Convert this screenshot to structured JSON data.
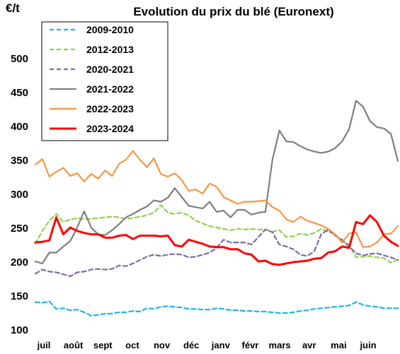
{
  "chart_data": {
    "type": "line",
    "title": "Evolution du prix du blé (Euronext)",
    "ylabel": "€/t",
    "xlabel": "",
    "ylim": [
      100,
      500
    ],
    "yticks": [
      100,
      150,
      200,
      250,
      300,
      350,
      400,
      450,
      500
    ],
    "x_tick_labels": [
      "juil",
      "août",
      "sept",
      "oct",
      "nov",
      "déc",
      "janv",
      "févr",
      "mars",
      "avr",
      "mai",
      "juin"
    ],
    "grid": false,
    "legend_position": "top-left",
    "x_range": [
      0,
      52
    ],
    "series": [
      {
        "name": "2009-2010",
        "color": "#1fb4e8",
        "dash": "dashed",
        "values": [
          [
            0,
            140
          ],
          [
            1,
            139
          ],
          [
            2,
            141
          ],
          [
            3,
            130
          ],
          [
            4,
            131
          ],
          [
            5,
            128
          ],
          [
            6,
            129
          ],
          [
            7,
            125
          ],
          [
            8,
            120
          ],
          [
            9,
            121
          ],
          [
            10,
            123
          ],
          [
            11,
            123
          ],
          [
            12,
            125
          ],
          [
            13,
            125
          ],
          [
            14,
            127
          ],
          [
            15,
            126
          ],
          [
            16,
            131
          ],
          [
            17,
            130
          ],
          [
            18,
            133
          ],
          [
            19,
            134
          ],
          [
            20,
            133
          ],
          [
            21,
            132
          ],
          [
            22,
            130
          ],
          [
            23,
            130
          ],
          [
            24,
            129
          ],
          [
            25,
            129
          ],
          [
            26,
            131
          ],
          [
            27,
            130
          ],
          [
            28,
            128
          ],
          [
            29,
            128
          ],
          [
            30,
            127
          ],
          [
            31,
            127
          ],
          [
            32,
            126
          ],
          [
            33,
            126
          ],
          [
            34,
            125
          ],
          [
            35,
            124
          ],
          [
            36,
            124
          ],
          [
            37,
            125
          ],
          [
            38,
            127
          ],
          [
            39,
            128
          ],
          [
            40,
            130
          ],
          [
            41,
            131
          ],
          [
            42,
            132
          ],
          [
            43,
            133
          ],
          [
            44,
            134
          ],
          [
            45,
            135
          ],
          [
            46,
            140
          ],
          [
            47,
            136
          ],
          [
            48,
            134
          ],
          [
            49,
            133
          ],
          [
            50,
            131
          ],
          [
            51,
            131
          ],
          [
            52,
            131
          ]
        ]
      },
      {
        "name": "2012-2013",
        "color": "#92d050",
        "dash": "dashed",
        "values": [
          [
            0,
            226
          ],
          [
            1,
            245
          ],
          [
            2,
            260
          ],
          [
            3,
            270
          ],
          [
            4,
            258
          ],
          [
            5,
            262
          ],
          [
            6,
            264
          ],
          [
            7,
            262
          ],
          [
            8,
            263
          ],
          [
            9,
            264
          ],
          [
            10,
            265
          ],
          [
            11,
            266
          ],
          [
            12,
            265
          ],
          [
            13,
            263
          ],
          [
            14,
            264
          ],
          [
            15,
            266
          ],
          [
            16,
            268
          ],
          [
            17,
            272
          ],
          [
            18,
            283
          ],
          [
            19,
            272
          ],
          [
            20,
            270
          ],
          [
            21,
            272
          ],
          [
            22,
            268
          ],
          [
            23,
            260
          ],
          [
            24,
            256
          ],
          [
            25,
            252
          ],
          [
            26,
            250
          ],
          [
            27,
            248
          ],
          [
            28,
            246
          ],
          [
            29,
            248
          ],
          [
            30,
            247
          ],
          [
            31,
            248
          ],
          [
            32,
            247
          ],
          [
            33,
            247
          ],
          [
            34,
            244
          ],
          [
            35,
            246
          ],
          [
            36,
            236
          ],
          [
            37,
            237
          ],
          [
            38,
            241
          ],
          [
            39,
            239
          ],
          [
            40,
            242
          ],
          [
            41,
            248
          ],
          [
            42,
            244
          ],
          [
            43,
            240
          ],
          [
            44,
            230
          ],
          [
            45,
            225
          ],
          [
            46,
            206
          ],
          [
            47,
            207
          ],
          [
            48,
            208
          ],
          [
            49,
            206
          ],
          [
            50,
            205
          ],
          [
            51,
            198
          ],
          [
            52,
            203
          ]
        ]
      },
      {
        "name": "2020-2021",
        "color": "#7f6aac",
        "dash": "dashed",
        "values": [
          [
            0,
            182
          ],
          [
            1,
            188
          ],
          [
            2,
            185
          ],
          [
            3,
            184
          ],
          [
            4,
            181
          ],
          [
            5,
            178
          ],
          [
            6,
            184
          ],
          [
            7,
            185
          ],
          [
            8,
            188
          ],
          [
            9,
            189
          ],
          [
            10,
            188
          ],
          [
            11,
            189
          ],
          [
            12,
            194
          ],
          [
            13,
            193
          ],
          [
            14,
            197
          ],
          [
            15,
            202
          ],
          [
            16,
            207
          ],
          [
            17,
            210
          ],
          [
            18,
            208
          ],
          [
            19,
            210
          ],
          [
            20,
            211
          ],
          [
            21,
            210
          ],
          [
            22,
            206
          ],
          [
            23,
            207
          ],
          [
            24,
            210
          ],
          [
            25,
            213
          ],
          [
            26,
            220
          ],
          [
            27,
            232
          ],
          [
            28,
            228
          ],
          [
            29,
            228
          ],
          [
            30,
            228
          ],
          [
            31,
            225
          ],
          [
            32,
            236
          ],
          [
            33,
            247
          ],
          [
            34,
            243
          ],
          [
            35,
            225
          ],
          [
            36,
            222
          ],
          [
            37,
            218
          ],
          [
            38,
            210
          ],
          [
            39,
            208
          ],
          [
            40,
            215
          ],
          [
            41,
            240
          ],
          [
            42,
            247
          ],
          [
            43,
            238
          ],
          [
            44,
            232
          ],
          [
            45,
            222
          ],
          [
            46,
            212
          ],
          [
            47,
            209
          ],
          [
            48,
            211
          ],
          [
            49,
            212
          ],
          [
            50,
            209
          ],
          [
            51,
            206
          ],
          [
            52,
            202
          ]
        ]
      },
      {
        "name": "2021-2022",
        "color": "#7f7f7f",
        "dash": "solid",
        "values": [
          [
            0,
            200
          ],
          [
            1,
            197
          ],
          [
            2,
            213
          ],
          [
            3,
            213
          ],
          [
            4,
            222
          ],
          [
            5,
            230
          ],
          [
            6,
            250
          ],
          [
            7,
            274
          ],
          [
            8,
            250
          ],
          [
            9,
            240
          ],
          [
            10,
            239
          ],
          [
            11,
            246
          ],
          [
            12,
            255
          ],
          [
            13,
            265
          ],
          [
            14,
            270
          ],
          [
            15,
            276
          ],
          [
            16,
            281
          ],
          [
            17,
            290
          ],
          [
            18,
            288
          ],
          [
            19,
            294
          ],
          [
            20,
            308
          ],
          [
            21,
            295
          ],
          [
            22,
            282
          ],
          [
            23,
            280
          ],
          [
            24,
            278
          ],
          [
            25,
            288
          ],
          [
            26,
            273
          ],
          [
            27,
            275
          ],
          [
            28,
            265
          ],
          [
            29,
            276
          ],
          [
            30,
            276
          ],
          [
            31,
            269
          ],
          [
            32,
            272
          ],
          [
            33,
            273
          ],
          [
            34,
            350
          ],
          [
            35,
            393
          ],
          [
            36,
            377
          ],
          [
            37,
            376
          ],
          [
            38,
            370
          ],
          [
            39,
            365
          ],
          [
            40,
            362
          ],
          [
            41,
            360
          ],
          [
            42,
            362
          ],
          [
            43,
            367
          ],
          [
            44,
            377
          ],
          [
            45,
            395
          ],
          [
            46,
            437
          ],
          [
            47,
            428
          ],
          [
            48,
            407
          ],
          [
            49,
            398
          ],
          [
            50,
            396
          ],
          [
            51,
            388
          ],
          [
            52,
            348
          ]
        ]
      },
      {
        "name": "2022-2023",
        "color": "#f79646",
        "dash": "solid",
        "values": [
          [
            0,
            343
          ],
          [
            1,
            351
          ],
          [
            2,
            325
          ],
          [
            3,
            332
          ],
          [
            4,
            338
          ],
          [
            5,
            326
          ],
          [
            6,
            330
          ],
          [
            7,
            318
          ],
          [
            8,
            329
          ],
          [
            9,
            322
          ],
          [
            10,
            334
          ],
          [
            11,
            326
          ],
          [
            12,
            344
          ],
          [
            13,
            350
          ],
          [
            14,
            363
          ],
          [
            15,
            350
          ],
          [
            16,
            339
          ],
          [
            17,
            352
          ],
          [
            18,
            329
          ],
          [
            19,
            325
          ],
          [
            20,
            330
          ],
          [
            21,
            320
          ],
          [
            22,
            304
          ],
          [
            23,
            306
          ],
          [
            24,
            300
          ],
          [
            25,
            315
          ],
          [
            26,
            310
          ],
          [
            27,
            295
          ],
          [
            28,
            290
          ],
          [
            29,
            285
          ],
          [
            30,
            288
          ],
          [
            31,
            288
          ],
          [
            32,
            289
          ],
          [
            33,
            290
          ],
          [
            34,
            280
          ],
          [
            35,
            275
          ],
          [
            36,
            262
          ],
          [
            37,
            258
          ],
          [
            38,
            266
          ],
          [
            39,
            260
          ],
          [
            40,
            257
          ],
          [
            41,
            253
          ],
          [
            42,
            248
          ],
          [
            43,
            240
          ],
          [
            44,
            228
          ],
          [
            45,
            241
          ],
          [
            46,
            243
          ],
          [
            47,
            221
          ],
          [
            48,
            222
          ],
          [
            49,
            228
          ],
          [
            50,
            240
          ],
          [
            51,
            241
          ],
          [
            52,
            252
          ]
        ]
      },
      {
        "name": "2023-2024",
        "color": "#ff0000",
        "dash": "solid",
        "values": [
          [
            0,
            228
          ],
          [
            1,
            229
          ],
          [
            2,
            231
          ],
          [
            3,
            265
          ],
          [
            4,
            240
          ],
          [
            5,
            250
          ],
          [
            6,
            245
          ],
          [
            7,
            242
          ],
          [
            8,
            240
          ],
          [
            9,
            240
          ],
          [
            10,
            235
          ],
          [
            11,
            235
          ],
          [
            12,
            238
          ],
          [
            13,
            239
          ],
          [
            14,
            233
          ],
          [
            15,
            238
          ],
          [
            16,
            238
          ],
          [
            17,
            238
          ],
          [
            18,
            237
          ],
          [
            19,
            238
          ],
          [
            20,
            224
          ],
          [
            21,
            222
          ],
          [
            22,
            232
          ],
          [
            23,
            229
          ],
          [
            24,
            226
          ],
          [
            25,
            222
          ],
          [
            26,
            221
          ],
          [
            27,
            221
          ],
          [
            28,
            218
          ],
          [
            29,
            218
          ],
          [
            30,
            212
          ],
          [
            31,
            210
          ],
          [
            32,
            200
          ],
          [
            33,
            201
          ],
          [
            34,
            196
          ],
          [
            35,
            195
          ],
          [
            36,
            197
          ],
          [
            37,
            199
          ],
          [
            38,
            200
          ],
          [
            39,
            201
          ],
          [
            40,
            204
          ],
          [
            41,
            205
          ],
          [
            42,
            213
          ],
          [
            43,
            215
          ],
          [
            44,
            222
          ],
          [
            45,
            220
          ],
          [
            46,
            258
          ],
          [
            47,
            255
          ],
          [
            48,
            268
          ],
          [
            49,
            258
          ],
          [
            50,
            238
          ],
          [
            51,
            229
          ],
          [
            52,
            223
          ]
        ]
      }
    ]
  }
}
